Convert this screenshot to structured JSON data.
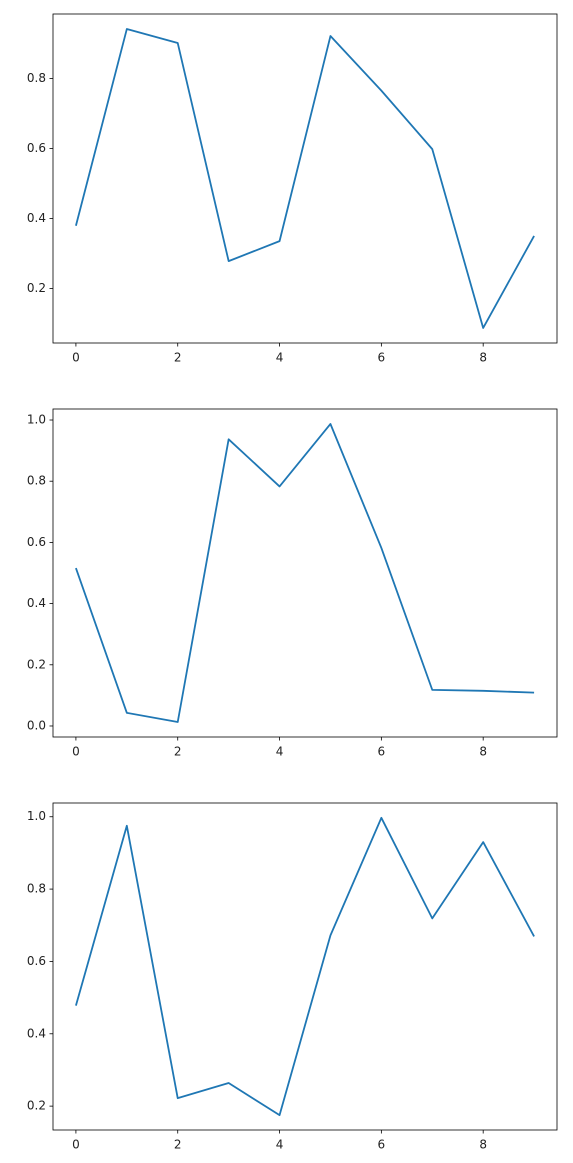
{
  "chart_data": [
    {
      "type": "line",
      "x": [
        0,
        1,
        2,
        3,
        4,
        5,
        6,
        7,
        8,
        9
      ],
      "values": [
        0.379,
        0.941,
        0.901,
        0.278,
        0.335,
        0.921,
        0.765,
        0.598,
        0.087,
        0.35
      ],
      "color": "#1f77b4",
      "xlim": [
        -0.45,
        9.45
      ],
      "xticks": [
        0,
        2,
        4,
        6,
        8
      ],
      "ylim": [
        0.044,
        0.984
      ],
      "yticks": [
        0.2,
        0.4,
        0.6,
        0.8
      ]
    },
    {
      "type": "line",
      "x": [
        0,
        1,
        2,
        3,
        4,
        5,
        6,
        7,
        8,
        9
      ],
      "values": [
        0.516,
        0.043,
        0.013,
        0.937,
        0.783,
        0.987,
        0.582,
        0.118,
        0.115,
        0.109
      ],
      "color": "#1f77b4",
      "xlim": [
        -0.45,
        9.45
      ],
      "xticks": [
        0,
        2,
        4,
        6,
        8
      ],
      "ylim": [
        -0.036,
        1.036
      ],
      "yticks": [
        {
          "value": 0,
          "label": "0.0"
        },
        0.2,
        0.4,
        0.6,
        0.8,
        {
          "value": 1,
          "label": "1.0"
        }
      ]
    },
    {
      "type": "line",
      "x": [
        0,
        1,
        2,
        3,
        4,
        5,
        6,
        7,
        8,
        9
      ],
      "values": [
        0.478,
        0.975,
        0.222,
        0.264,
        0.175,
        0.672,
        0.997,
        0.719,
        0.93,
        0.669
      ],
      "color": "#1f77b4",
      "xlim": [
        -0.45,
        9.45
      ],
      "xticks": [
        0,
        2,
        4,
        6,
        8
      ],
      "ylim": [
        0.134,
        1.038
      ],
      "yticks": [
        0.2,
        0.4,
        0.6,
        0.8,
        {
          "value": 1,
          "label": "1.0"
        }
      ]
    }
  ]
}
